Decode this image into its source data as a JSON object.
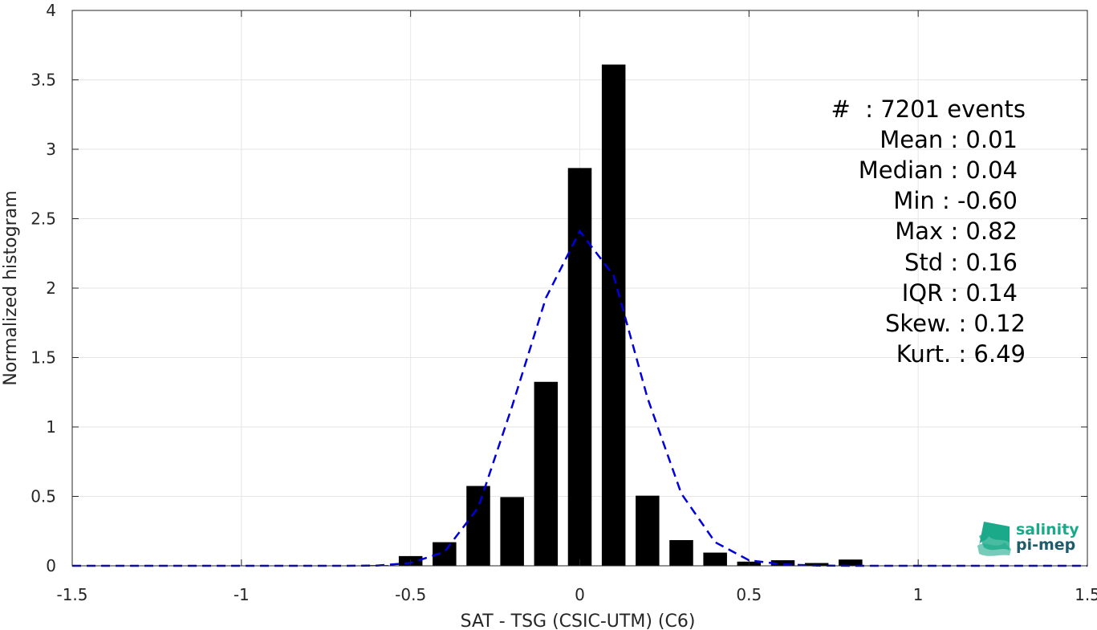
{
  "chart_data": {
    "type": "bar",
    "xlabel": "SAT - TSG (CSIC-UTM) (C6)",
    "ylabel": "Normalized histogram",
    "xlim": [
      -1.5,
      1.5
    ],
    "ylim": [
      0,
      4
    ],
    "x_ticks": [
      -1.5,
      -1,
      -0.5,
      0,
      0.5,
      1,
      1.5
    ],
    "x_tick_labels": [
      "-1.5",
      "-1",
      "-0.5",
      "0",
      "0.5",
      "1",
      "1.5"
    ],
    "y_ticks": [
      0,
      0.5,
      1,
      1.5,
      2,
      2.5,
      3,
      3.5,
      4
    ],
    "y_tick_labels": [
      "0",
      "0.5",
      "1",
      "1.5",
      "2",
      "2.5",
      "3",
      "3.5",
      "4"
    ],
    "grid": true,
    "bar_width": 0.07,
    "bars": {
      "x": [
        -0.6,
        -0.5,
        -0.4,
        -0.3,
        -0.2,
        -0.1,
        0.0,
        0.1,
        0.2,
        0.3,
        0.4,
        0.5,
        0.6,
        0.7,
        0.8
      ],
      "values": [
        0.005,
        0.07,
        0.17,
        0.575,
        0.495,
        1.325,
        2.865,
        3.61,
        0.505,
        0.185,
        0.095,
        0.03,
        0.04,
        0.02,
        0.045
      ]
    },
    "fit_curve": {
      "style": "dashed",
      "color": "#0000dd",
      "x": [
        -1.5,
        -1.4,
        -1.3,
        -1.2,
        -1.1,
        -1.0,
        -0.9,
        -0.8,
        -0.7,
        -0.6,
        -0.5,
        -0.4,
        -0.3,
        -0.2,
        -0.1,
        0.0,
        0.1,
        0.2,
        0.3,
        0.4,
        0.5,
        0.6,
        0.7,
        0.8,
        0.9,
        1.0,
        1.1,
        1.2,
        1.3,
        1.4,
        1.5
      ],
      "y": [
        0,
        0,
        0,
        0,
        0,
        0,
        0,
        0,
        0,
        0.002,
        0.02,
        0.1,
        0.42,
        1.15,
        1.93,
        2.41,
        2.09,
        1.21,
        0.52,
        0.17,
        0.04,
        0.01,
        0.002,
        0,
        0,
        0,
        0,
        0,
        0,
        0,
        0
      ]
    }
  },
  "stats": {
    "lines": [
      "#  : 7201 events",
      "Mean : 0.01",
      "Median : 0.04",
      "Min : -0.60",
      "Max : 0.82",
      "Std : 0.16",
      "IQR : 0.14",
      "Skew. : 0.12",
      "Kurt. : 6.49"
    ]
  },
  "logo": {
    "line1": "salinity",
    "line2": "pi-mep",
    "color_top": "#1aaa8a",
    "color_bottom": "#1d5c6b"
  },
  "colors": {
    "bar": "#000000",
    "grid": "#e6e6e6",
    "axis": "#262626",
    "fit": "#0000dd"
  }
}
